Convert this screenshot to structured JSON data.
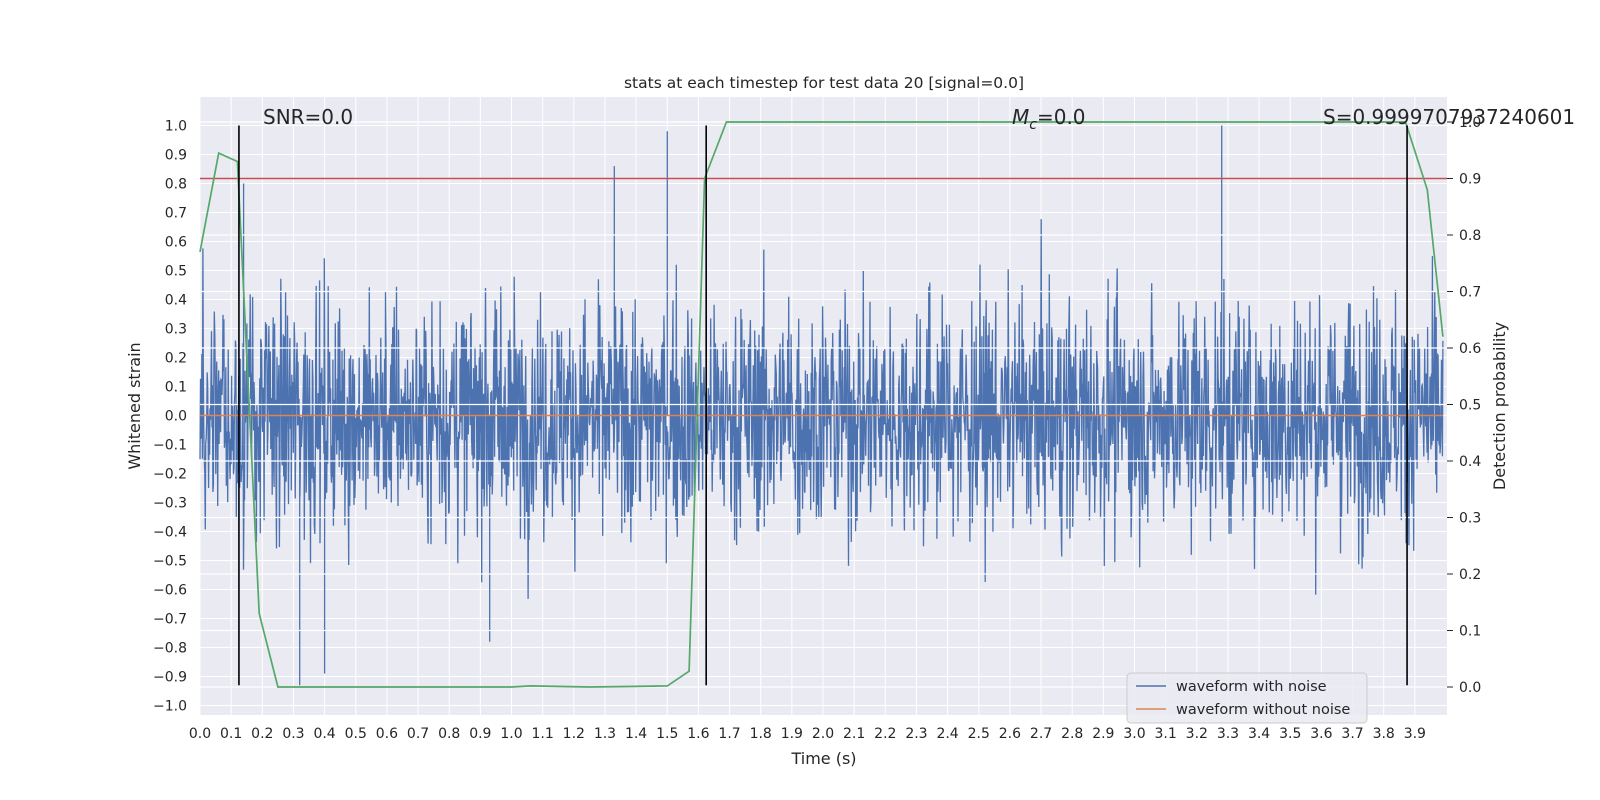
{
  "chart_data": {
    "type": "line",
    "title": "stats at each timestep for test data 20 [signal=0.0]",
    "xlabel": "Time (s)",
    "ylabel": "Whitened strain",
    "y2label": "Detection probability",
    "xlim": [
      0.0,
      3.99
    ],
    "ylim": [
      -1.05,
      1.1
    ],
    "y2lim": [
      -0.045,
      1.045
    ],
    "xticks": [
      "0.0",
      "0.1",
      "0.2",
      "0.3",
      "0.4",
      "0.5",
      "0.6",
      "0.7",
      "0.8",
      "0.9",
      "1.0",
      "1.1",
      "1.2",
      "1.3",
      "1.4",
      "1.5",
      "1.6",
      "1.7",
      "1.8",
      "1.9",
      "2.0",
      "2.1",
      "2.2",
      "2.3",
      "2.4",
      "2.5",
      "2.6",
      "2.7",
      "2.8",
      "2.9",
      "3.0",
      "3.1",
      "3.2",
      "3.3",
      "3.4",
      "3.5",
      "3.6",
      "3.7",
      "3.8",
      "3.9"
    ],
    "yticks": [
      "1.0",
      "0.9",
      "0.8",
      "0.7",
      "0.6",
      "0.5",
      "0.4",
      "0.3",
      "0.2",
      "0.1",
      "0.0",
      "−0.1",
      "−0.2",
      "−0.3",
      "−0.4",
      "−0.5",
      "−0.6",
      "−0.7",
      "−0.8",
      "−0.9",
      "−1.0"
    ],
    "y2ticks": [
      "1.0",
      "0.9",
      "0.8",
      "0.7",
      "0.6",
      "0.5",
      "0.4",
      "0.3",
      "0.2",
      "0.1",
      "0.0"
    ],
    "grid": true,
    "legend_position": "lower-right",
    "annotations": {
      "snr": "SNR=0.0",
      "mc_symbol": "M",
      "mc_sub": "c",
      "mc_value": "=0.0",
      "s": "S=0.9999707937240601"
    },
    "series": [
      {
        "name": "waveform with noise",
        "color": "#4c72b0",
        "description": "dense noise, 4 s, approx. range -0.93 to 1.0",
        "amplitude_sigma": 0.28,
        "peaks": [
          [
            0.14,
            0.8
          ],
          [
            1.5,
            0.98
          ],
          [
            3.28,
            1.0
          ],
          [
            1.33,
            0.86
          ],
          [
            0.32,
            -0.93
          ],
          [
            0.4,
            -0.89
          ],
          [
            0.93,
            -0.78
          ]
        ]
      },
      {
        "name": "waveform without noise",
        "color": "#dd8452",
        "x": [
          0.0,
          3.99
        ],
        "y": [
          0.0,
          0.0
        ]
      },
      {
        "name": "detection probability",
        "color": "#55a868",
        "axis": "right",
        "x": [
          0.0,
          0.06,
          0.12,
          0.19,
          0.25,
          0.32,
          0.5,
          0.75,
          1.0,
          1.06,
          1.25,
          1.5,
          1.57,
          1.62,
          1.69,
          1.75,
          2.0,
          2.5,
          3.0,
          3.5,
          3.87,
          3.94,
          3.99
        ],
        "y": [
          0.77,
          0.945,
          0.93,
          0.13,
          0.0,
          0.0,
          0.0,
          0.0,
          0.0,
          0.002,
          0.0,
          0.002,
          0.028,
          0.9,
          1.0,
          1.0,
          1.0,
          1.0,
          1.0,
          1.0,
          1.0,
          0.88,
          0.62
        ]
      }
    ],
    "threshold": {
      "color": "#c44e52",
      "axis": "right",
      "value": 0.9
    },
    "vlines": {
      "color": "#000000",
      "x": [
        0.125,
        1.625,
        3.875
      ],
      "y_range": [
        -0.93,
        1.0
      ]
    }
  }
}
